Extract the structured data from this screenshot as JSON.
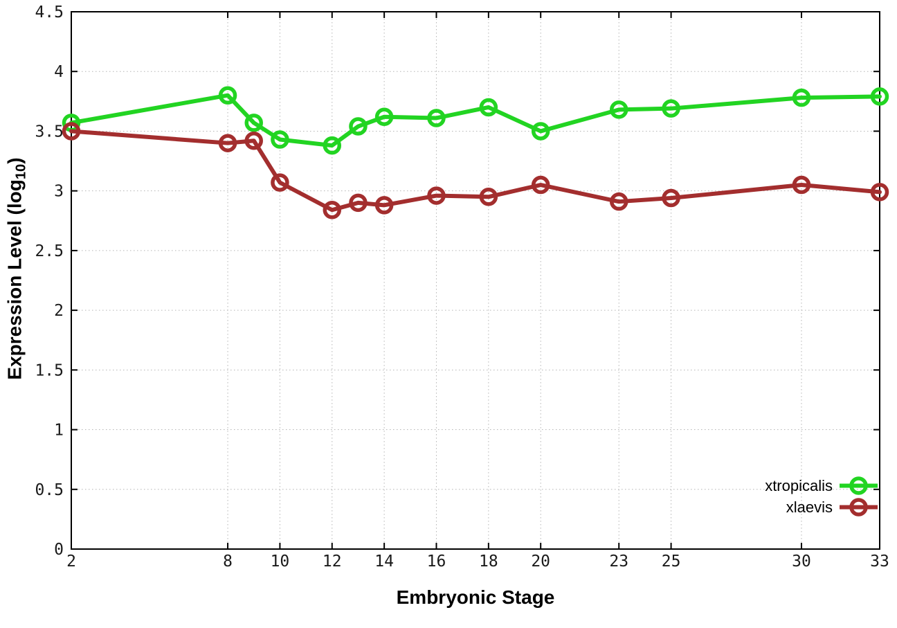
{
  "chart_data": {
    "type": "line",
    "title": "",
    "xlabel": "Embryonic Stage",
    "ylabel": {
      "main": "Expression Level (log",
      "sub": "10",
      "close": ")"
    },
    "xlim": [
      2,
      33
    ],
    "ylim": [
      0,
      4.5
    ],
    "grid": true,
    "legend_position": "bottom-right",
    "x_ticks": {
      "values": [
        2,
        8,
        10,
        12,
        14,
        16,
        18,
        20,
        23,
        25,
        30,
        33
      ],
      "labels": [
        "2",
        "8",
        "10",
        "12",
        "14",
        "16",
        "18",
        "20",
        "23",
        "25",
        "30",
        "33"
      ]
    },
    "y_ticks": {
      "values": [
        0,
        0.5,
        1,
        1.5,
        2,
        2.5,
        3,
        3.5,
        4,
        4.5
      ],
      "labels": [
        "0",
        "0.5",
        "1",
        "1.5",
        "2",
        "2.5",
        "3",
        "3.5",
        "4",
        "4.5"
      ]
    },
    "series": [
      {
        "name": "xtropicalis",
        "color": "#22d422",
        "x": [
          2,
          8,
          9,
          10,
          12,
          13,
          14,
          16,
          18,
          20,
          23,
          25,
          30,
          33
        ],
        "y": [
          3.57,
          3.8,
          3.57,
          3.43,
          3.38,
          3.54,
          3.62,
          3.61,
          3.7,
          3.5,
          3.68,
          3.69,
          3.78,
          3.79
        ]
      },
      {
        "name": "xlaevis",
        "color": "#a32e2e",
        "x": [
          2,
          8,
          9,
          10,
          12,
          13,
          14,
          16,
          18,
          20,
          23,
          25,
          30,
          33
        ],
        "y": [
          3.5,
          3.4,
          3.42,
          3.07,
          2.84,
          2.9,
          2.88,
          2.96,
          2.95,
          3.05,
          2.91,
          2.94,
          3.05,
          2.99
        ]
      }
    ],
    "style": {
      "grid_color": "#b4b4b4",
      "axis_color": "#000000",
      "tick_label_color": "#1a1a1a",
      "line_width": 6,
      "marker_radius": 10.5,
      "marker_stroke": 5.5
    }
  }
}
